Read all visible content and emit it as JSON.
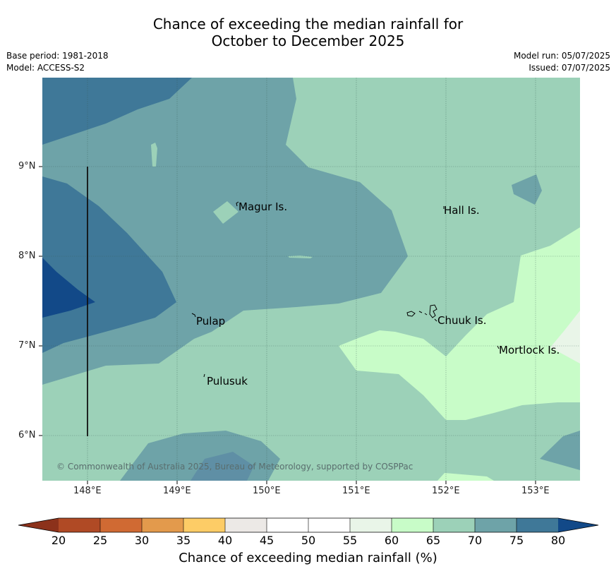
{
  "title_line1": "Chance of exceeding the median rainfall for",
  "title_line2": "October to December 2025",
  "base_period": "Base period: 1981-2018",
  "model": "Model: ACCESS-S2",
  "model_run": "Model run: 05/07/2025",
  "issued": "Issued: 07/07/2025",
  "map": {
    "lat_labels": [
      "9°N",
      "8°N",
      "7°N",
      "6°N"
    ],
    "lon_labels": [
      "148°E",
      "149°E",
      "150°E",
      "151°E",
      "152°E",
      "153°E"
    ],
    "places": [
      "Magur Is.",
      "Hall Is.",
      "Pulap",
      "Chuuk Is.",
      "Mortlock Is.",
      "Pulusuk"
    ],
    "copyright": "© Commonwealth of Australia 2025, Bureau of Meteorology, supported by COSPPac"
  },
  "colorbar": {
    "ticks": [
      "20",
      "25",
      "30",
      "35",
      "40",
      "45",
      "50",
      "55",
      "60",
      "65",
      "70",
      "75",
      "80"
    ],
    "colors": [
      "#b04a25",
      "#d06a33",
      "#e39a4c",
      "#fdcc66",
      "#ece9e6",
      "#ffffff",
      "#ffffff",
      "#e9f5e8",
      "#c8fcc8",
      "#9cd1b8",
      "#6ea3a8",
      "#3f7898"
    ],
    "under_color": "#8c321b",
    "over_color": "#124988",
    "label": "Chance of exceeding median rainfall (%)"
  }
}
